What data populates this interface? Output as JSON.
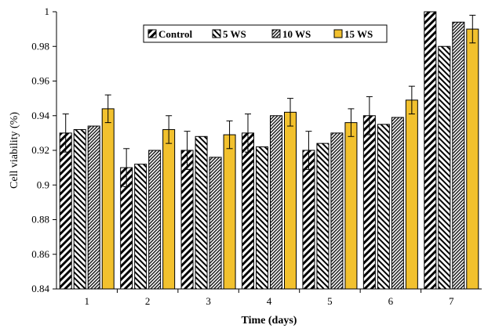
{
  "chart_data": {
    "type": "bar",
    "title": "",
    "xlabel": "Time (days)",
    "ylabel": "Cell viability (%)",
    "ylim": [
      0.84,
      1.0
    ],
    "yticks": [
      "0.84",
      "0.86",
      "0.88",
      "0.9",
      "0.92",
      "0.94",
      "0.96",
      "0.98",
      "1"
    ],
    "categories": [
      "1",
      "2",
      "3",
      "4",
      "5",
      "6",
      "7"
    ],
    "legend_position": "top-center",
    "series": [
      {
        "name": "Control",
        "pattern": "diagonal-hatch",
        "color": "#000000",
        "values": [
          0.93,
          0.91,
          0.92,
          0.93,
          0.92,
          0.94,
          1.0
        ],
        "errors": [
          0.011,
          0.011,
          0.011,
          0.011,
          0.011,
          0.011,
          0.0
        ]
      },
      {
        "name": "5 WS",
        "pattern": "reverse-diagonal-hatch",
        "color": "#000000",
        "values": [
          0.932,
          0.912,
          0.928,
          0.922,
          0.924,
          0.935,
          0.98
        ],
        "errors": [
          0,
          0,
          0,
          0,
          0,
          0,
          0
        ]
      },
      {
        "name": "10 WS",
        "pattern": "dense-hatch",
        "color": "#000000",
        "values": [
          0.934,
          0.92,
          0.916,
          0.94,
          0.93,
          0.939,
          0.994
        ],
        "errors": [
          0,
          0,
          0,
          0,
          0,
          0,
          0
        ]
      },
      {
        "name": "15 WS",
        "pattern": "solid",
        "color": "#f2c12e",
        "values": [
          0.944,
          0.932,
          0.929,
          0.942,
          0.936,
          0.949,
          0.99
        ],
        "errors": [
          0.008,
          0.008,
          0.008,
          0.008,
          0.008,
          0.008,
          0.008
        ]
      }
    ]
  }
}
